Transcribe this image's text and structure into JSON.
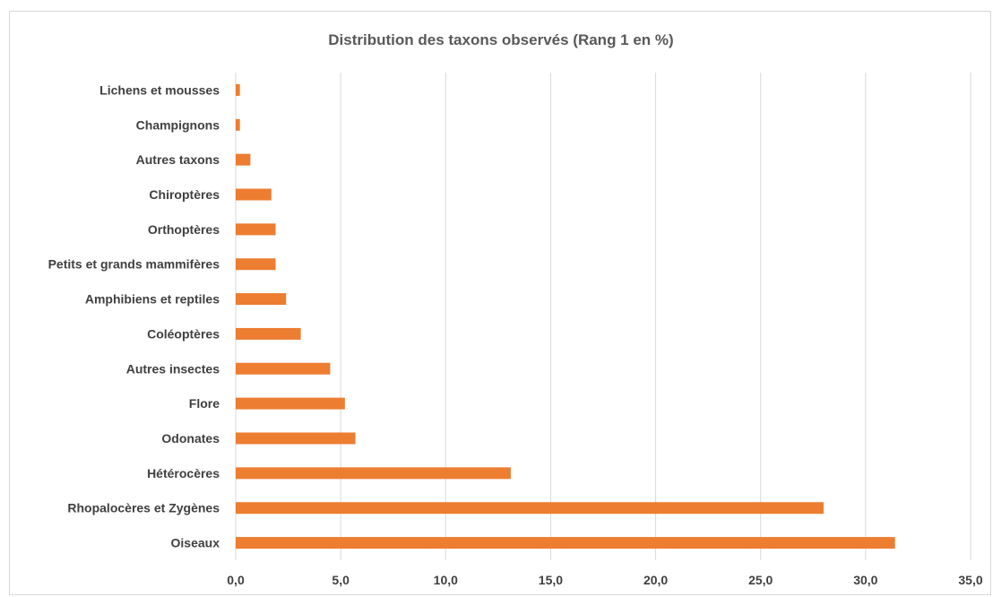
{
  "chart_data": {
    "type": "bar",
    "orientation": "horizontal",
    "title": "Distribution des taxons observés (Rang 1 en %)",
    "xlabel": "",
    "ylabel": "",
    "categories": [
      "Oiseaux",
      "Rhopalocères et Zygènes",
      "Hétérocères",
      "Odonates",
      "Flore",
      "Autres insectes",
      "Coléoptères",
      "Amphibiens et reptiles",
      "Petits et grands mammifères",
      "Orthoptères",
      "Chiroptères",
      "Autres taxons",
      "Champignons",
      "Lichens et mousses"
    ],
    "values": [
      31.4,
      28.0,
      13.1,
      5.7,
      5.2,
      4.5,
      3.1,
      2.4,
      1.9,
      1.9,
      1.7,
      0.7,
      0.2,
      0.2
    ],
    "xlim": [
      0,
      35
    ],
    "xticks": [
      0,
      5,
      10,
      15,
      20,
      25,
      30,
      35
    ],
    "xtick_labels": [
      "0,0",
      "5,0",
      "10,0",
      "15,0",
      "20,0",
      "25,0",
      "30,0",
      "35,0"
    ],
    "grid": true,
    "bar_color": "#ED7D31",
    "legend": "none"
  }
}
